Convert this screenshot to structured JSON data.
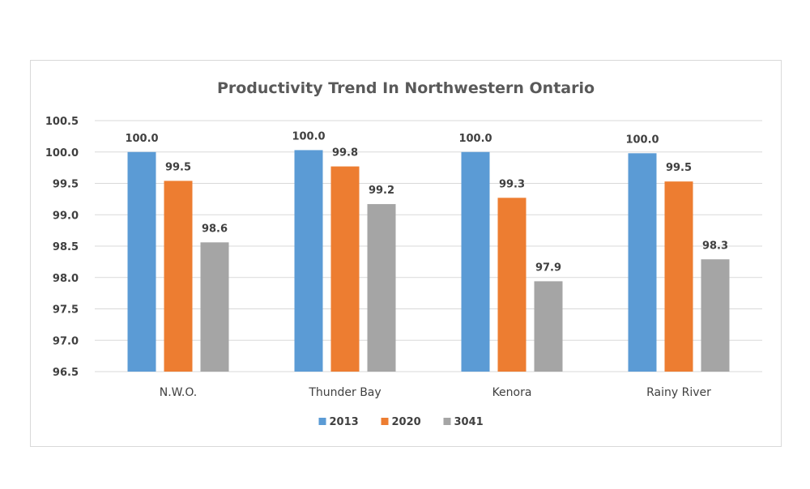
{
  "chart_data": {
    "type": "bar",
    "title": "Productivity Trend In Northwestern Ontario",
    "categories": [
      "N.W.O.",
      "Thunder Bay",
      "Kenora",
      "Rainy River"
    ],
    "series": [
      {
        "name": "2013",
        "color": "#5b9bd5",
        "values": [
          100.0,
          100.03,
          100.0,
          99.98
        ],
        "labels": [
          "100.0",
          "100.0",
          "100.0",
          "100.0"
        ]
      },
      {
        "name": "2020",
        "color": "#ed7d31",
        "values": [
          99.54,
          99.77,
          99.27,
          99.53
        ],
        "labels": [
          "99.5",
          "99.8",
          "99.3",
          "99.5"
        ]
      },
      {
        "name": "3041",
        "color": "#a5a5a5",
        "values": [
          98.56,
          99.17,
          97.94,
          98.29
        ],
        "labels": [
          "98.6",
          "99.2",
          "97.9",
          "98.3"
        ]
      }
    ],
    "ylim": [
      96.5,
      100.5
    ],
    "yticks": [
      "100.5",
      "100.0",
      "99.5",
      "99.0",
      "98.5",
      "98.0",
      "97.5",
      "97.0",
      "96.5"
    ],
    "xlabel": "",
    "ylabel": "",
    "grid": true,
    "legend_position": "bottom"
  }
}
